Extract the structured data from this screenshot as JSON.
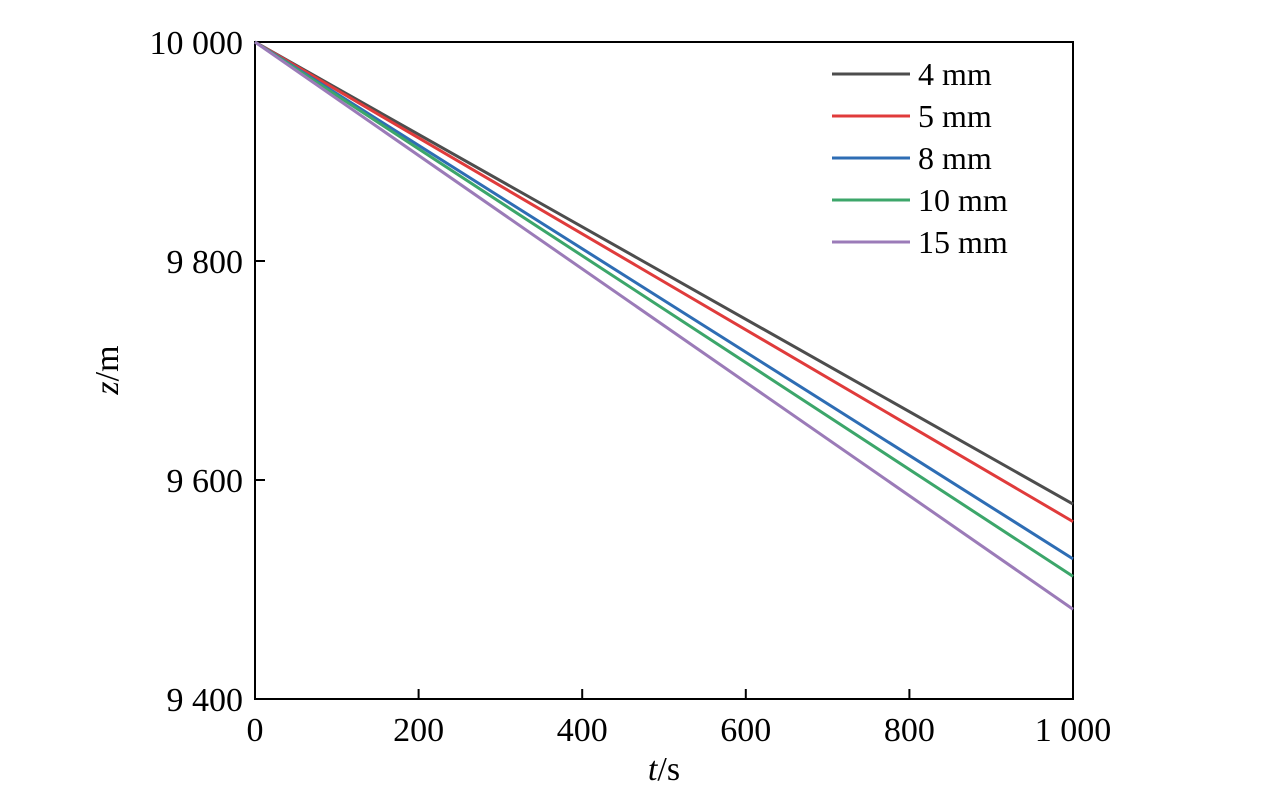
{
  "chart_data": {
    "type": "line",
    "title": "",
    "xlabel": "t",
    "xunit": "/s",
    "ylabel": "z",
    "yunit": "/m",
    "xlim": [
      0,
      1000
    ],
    "ylim": [
      9400,
      10000
    ],
    "xticks": [
      0,
      200,
      400,
      600,
      800,
      1000
    ],
    "xtick_labels": [
      "0",
      "200",
      "400",
      "600",
      "800",
      "1 000"
    ],
    "yticks": [
      9400,
      9600,
      9800,
      10000
    ],
    "ytick_labels": [
      "9 400",
      "9 600",
      "9 800",
      "10 000"
    ],
    "grid": false,
    "legend_position": "top-right",
    "x": [
      0,
      1000
    ],
    "series": [
      {
        "name": "4 mm",
        "color": "#4d4d4d",
        "values": [
          10000,
          9578
        ]
      },
      {
        "name": "5 mm",
        "color": "#e03b3b",
        "values": [
          10000,
          9562
        ]
      },
      {
        "name": "8 mm",
        "color": "#2e6db4",
        "values": [
          10000,
          9528
        ]
      },
      {
        "name": "10 mm",
        "color": "#3ca66a",
        "values": [
          10000,
          9512
        ]
      },
      {
        "name": "15 mm",
        "color": "#9b7bb8",
        "values": [
          10000,
          9482
        ]
      }
    ]
  }
}
